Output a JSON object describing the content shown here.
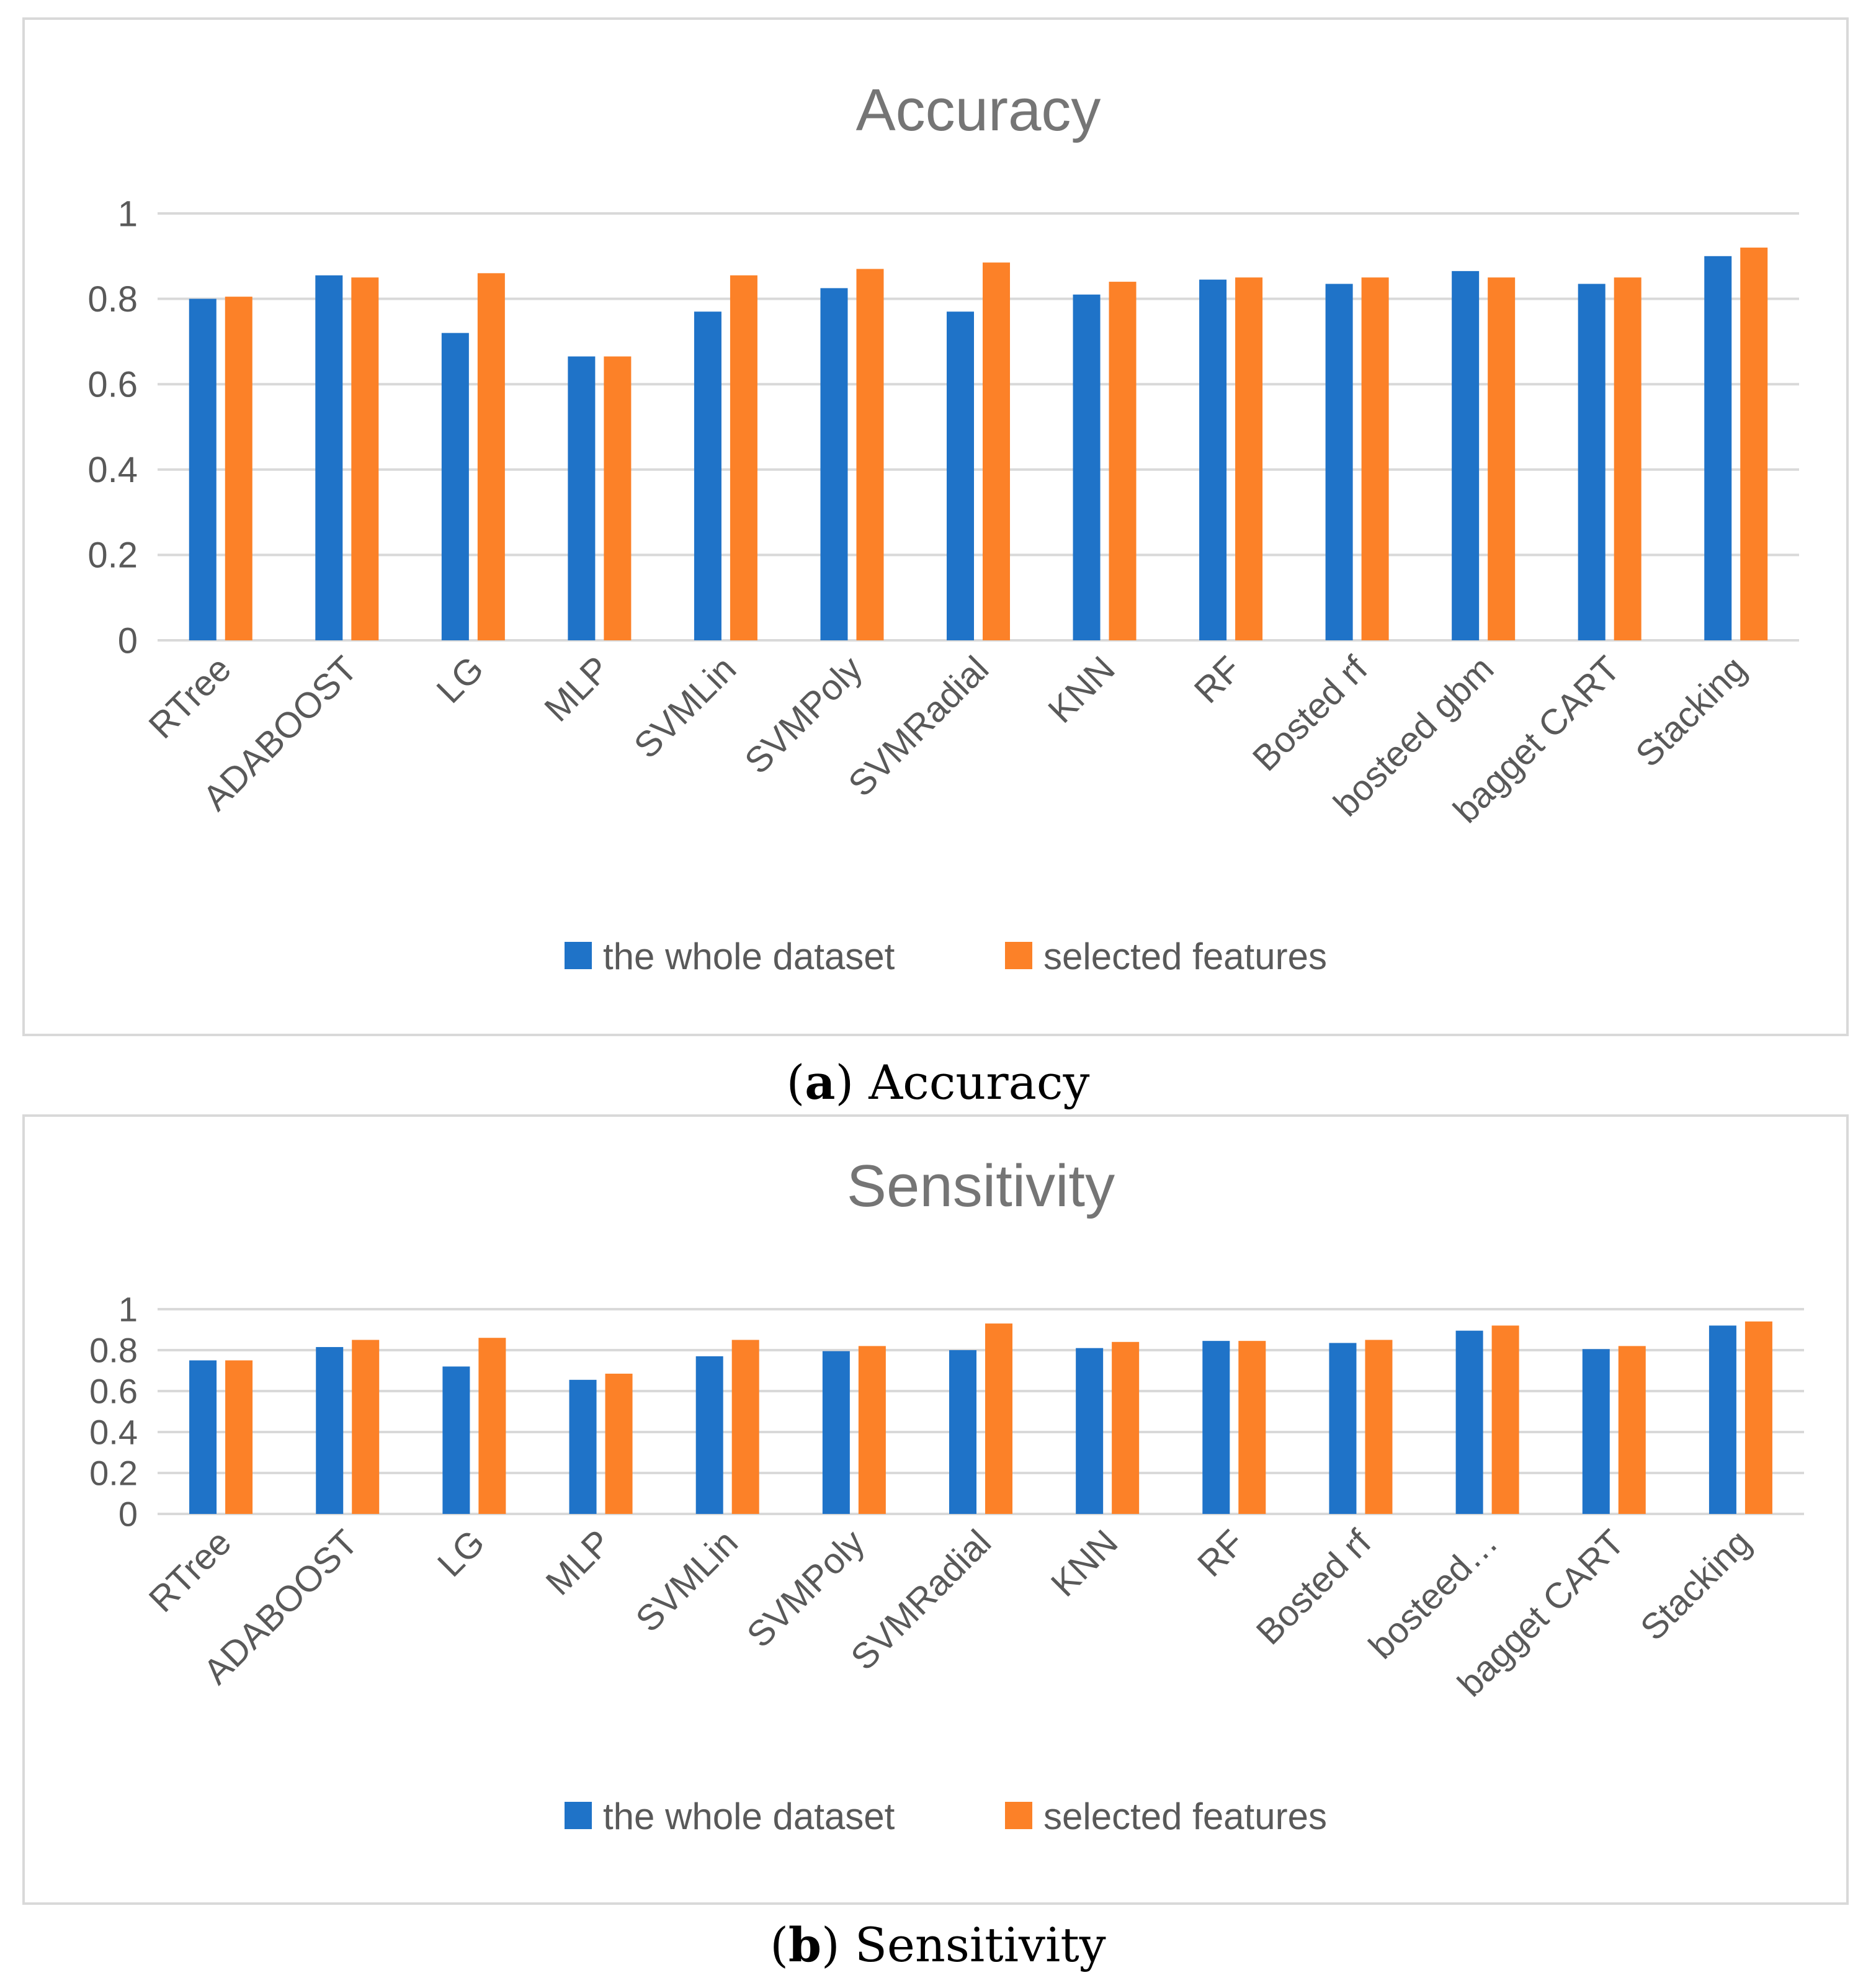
{
  "colors": {
    "series_a": "#1f73c8",
    "series_b": "#fc8128",
    "text": "#595959",
    "title": "#757575",
    "grid": "#d9d9d9"
  },
  "captions": [
    {
      "letter": "a",
      "text": "Accuracy"
    },
    {
      "letter": "b",
      "text": "Sensitivity"
    }
  ],
  "chart_data": [
    {
      "type": "bar",
      "title": "Accuracy",
      "xlabel": "",
      "ylabel": "",
      "ylim": [
        0,
        1
      ],
      "yticks": [
        "0",
        "0.2",
        "0.4",
        "0.6",
        "0.8",
        "1"
      ],
      "grid": true,
      "legend_position": "bottom",
      "categories": [
        "RTree",
        "ADABOOST",
        "LG",
        "MLP",
        "SVMLin",
        "SVMPoly",
        "SVMRadial",
        "KNN",
        "RF",
        "Bosted rf",
        "bosteed gbm",
        "bagget CART",
        "Stacking"
      ],
      "series": [
        {
          "name": "the whole dataset",
          "values": [
            0.8,
            0.855,
            0.72,
            0.665,
            0.77,
            0.825,
            0.77,
            0.81,
            0.845,
            0.835,
            0.865,
            0.835,
            0.9
          ]
        },
        {
          "name": "selected features",
          "values": [
            0.805,
            0.85,
            0.86,
            0.665,
            0.855,
            0.87,
            0.885,
            0.84,
            0.85,
            0.85,
            0.85,
            0.85,
            0.92
          ]
        }
      ]
    },
    {
      "type": "bar",
      "title": "Sensitivity",
      "xlabel": "",
      "ylabel": "",
      "ylim": [
        0,
        1
      ],
      "yticks": [
        "0",
        "0.2",
        "0.4",
        "0.6",
        "0.8",
        "1"
      ],
      "grid": true,
      "legend_position": "bottom",
      "categories": [
        "RTree",
        "ADABOOST",
        "LG",
        "MLP",
        "SVMLin",
        "SVMPoly",
        "SVMRadial",
        "KNN",
        "RF",
        "Bosted rf",
        "bosteed…",
        "bagget CART",
        "Stacking"
      ],
      "series": [
        {
          "name": "the whole dataset",
          "values": [
            0.75,
            0.815,
            0.72,
            0.655,
            0.77,
            0.795,
            0.8,
            0.81,
            0.845,
            0.835,
            0.895,
            0.805,
            0.92
          ]
        },
        {
          "name": "selected features",
          "values": [
            0.75,
            0.85,
            0.86,
            0.685,
            0.85,
            0.82,
            0.93,
            0.84,
            0.845,
            0.85,
            0.92,
            0.82,
            0.94
          ]
        }
      ]
    }
  ]
}
